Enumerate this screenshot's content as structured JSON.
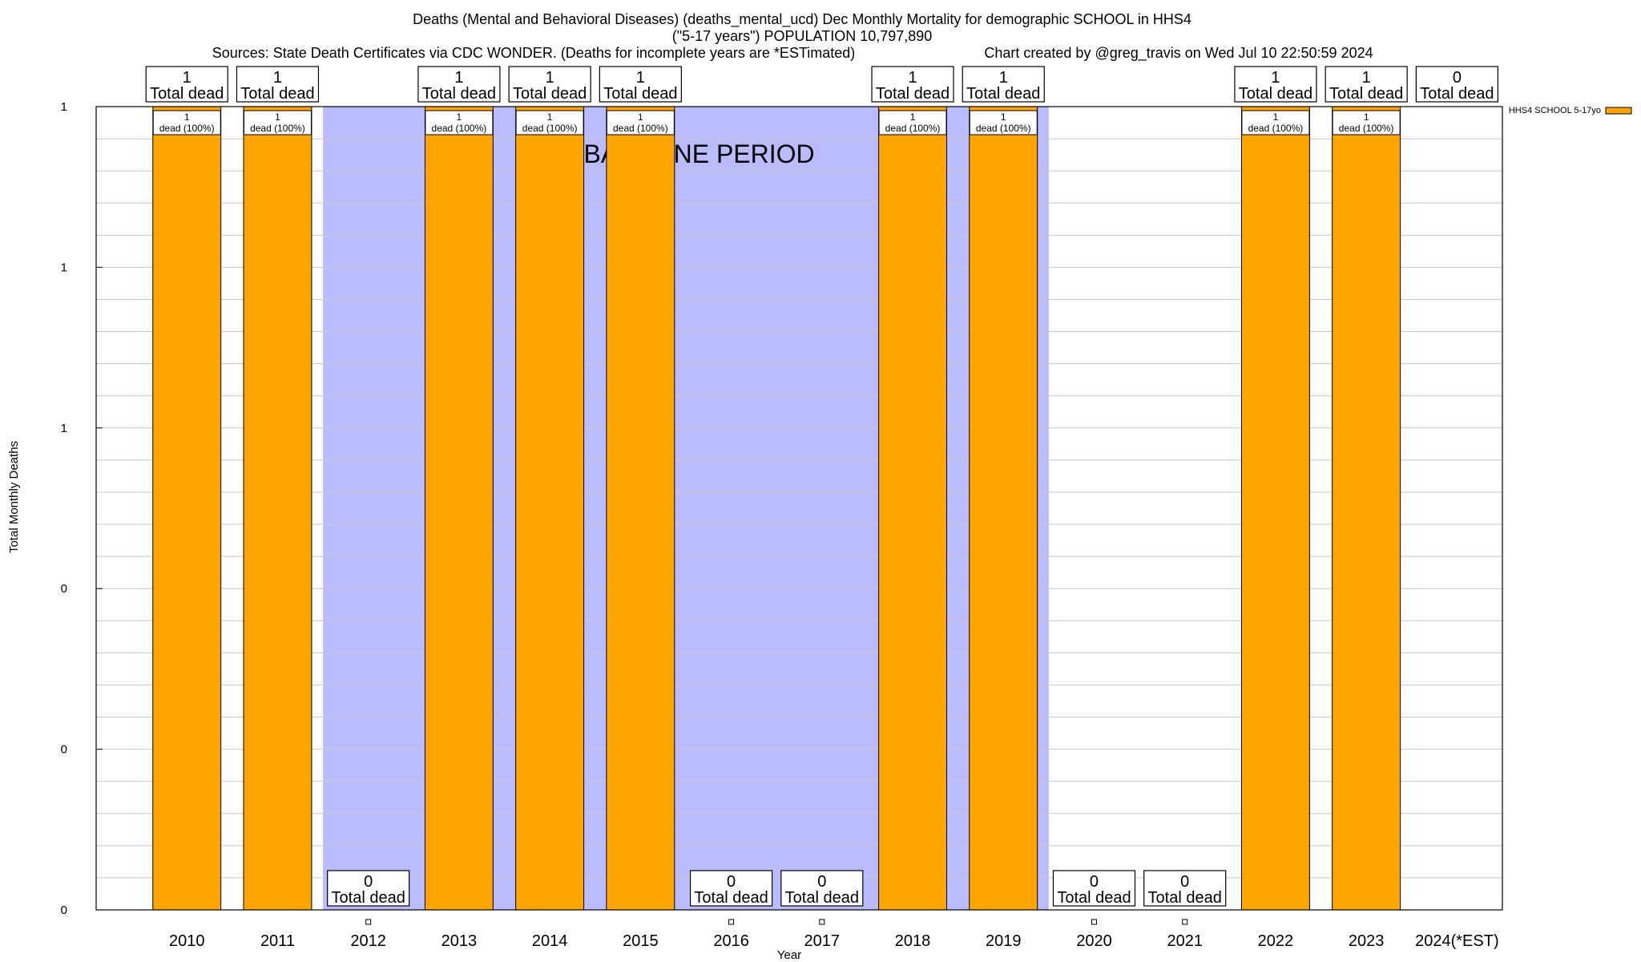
{
  "chart_data": {
    "type": "bar",
    "title_lines": [
      "Deaths (Mental and Behavioral Diseases) (deaths_mental_ucd) Dec Monthly Mortality for demographic SCHOOL in HHS4",
      "(\"5-17 years\") POPULATION 10,797,890"
    ],
    "source_note": "Sources: State Death Certificates via CDC WONDER. (Deaths for incomplete years are *ESTimated)",
    "credit": "Chart created by @greg_travis on Wed Jul 10 22:50:59 2024",
    "xlabel": "Year",
    "ylabel": "Total Monthly Deaths",
    "ylim": [
      0,
      1
    ],
    "y_tick_labels": [
      "0",
      "0",
      "0",
      "1",
      "1",
      "1"
    ],
    "categories": [
      "2010",
      "2011",
      "2012",
      "2013",
      "2014",
      "2015",
      "2016",
      "2017",
      "2018",
      "2019",
      "2020",
      "2021",
      "2022",
      "2023",
      "2024(*EST)"
    ],
    "series": [
      {
        "name": "HHS4 SCHOOL 5-17yo",
        "color": "#ffa500",
        "values": [
          1,
          1,
          0,
          1,
          1,
          1,
          0,
          0,
          1,
          1,
          0,
          0,
          1,
          1,
          0
        ]
      }
    ],
    "total_labels": [
      "1",
      "1",
      "0",
      "1",
      "1",
      "1",
      "0",
      "0",
      "1",
      "1",
      "0",
      "0",
      "1",
      "1",
      "0"
    ],
    "total_suffix": "Total dead",
    "bar_inner_labels": [
      "1",
      "1",
      "",
      "1",
      "1",
      "1",
      "",
      "",
      "1",
      "1",
      "",
      "",
      "1",
      "1",
      ""
    ],
    "bar_inner_suffix": "dead (100%)",
    "baseline_period": {
      "label": "BASELINE PERIOD",
      "from": "2012",
      "to": "2019",
      "color": "#bbbbff"
    },
    "grid": true,
    "legend_position": "top-right"
  }
}
